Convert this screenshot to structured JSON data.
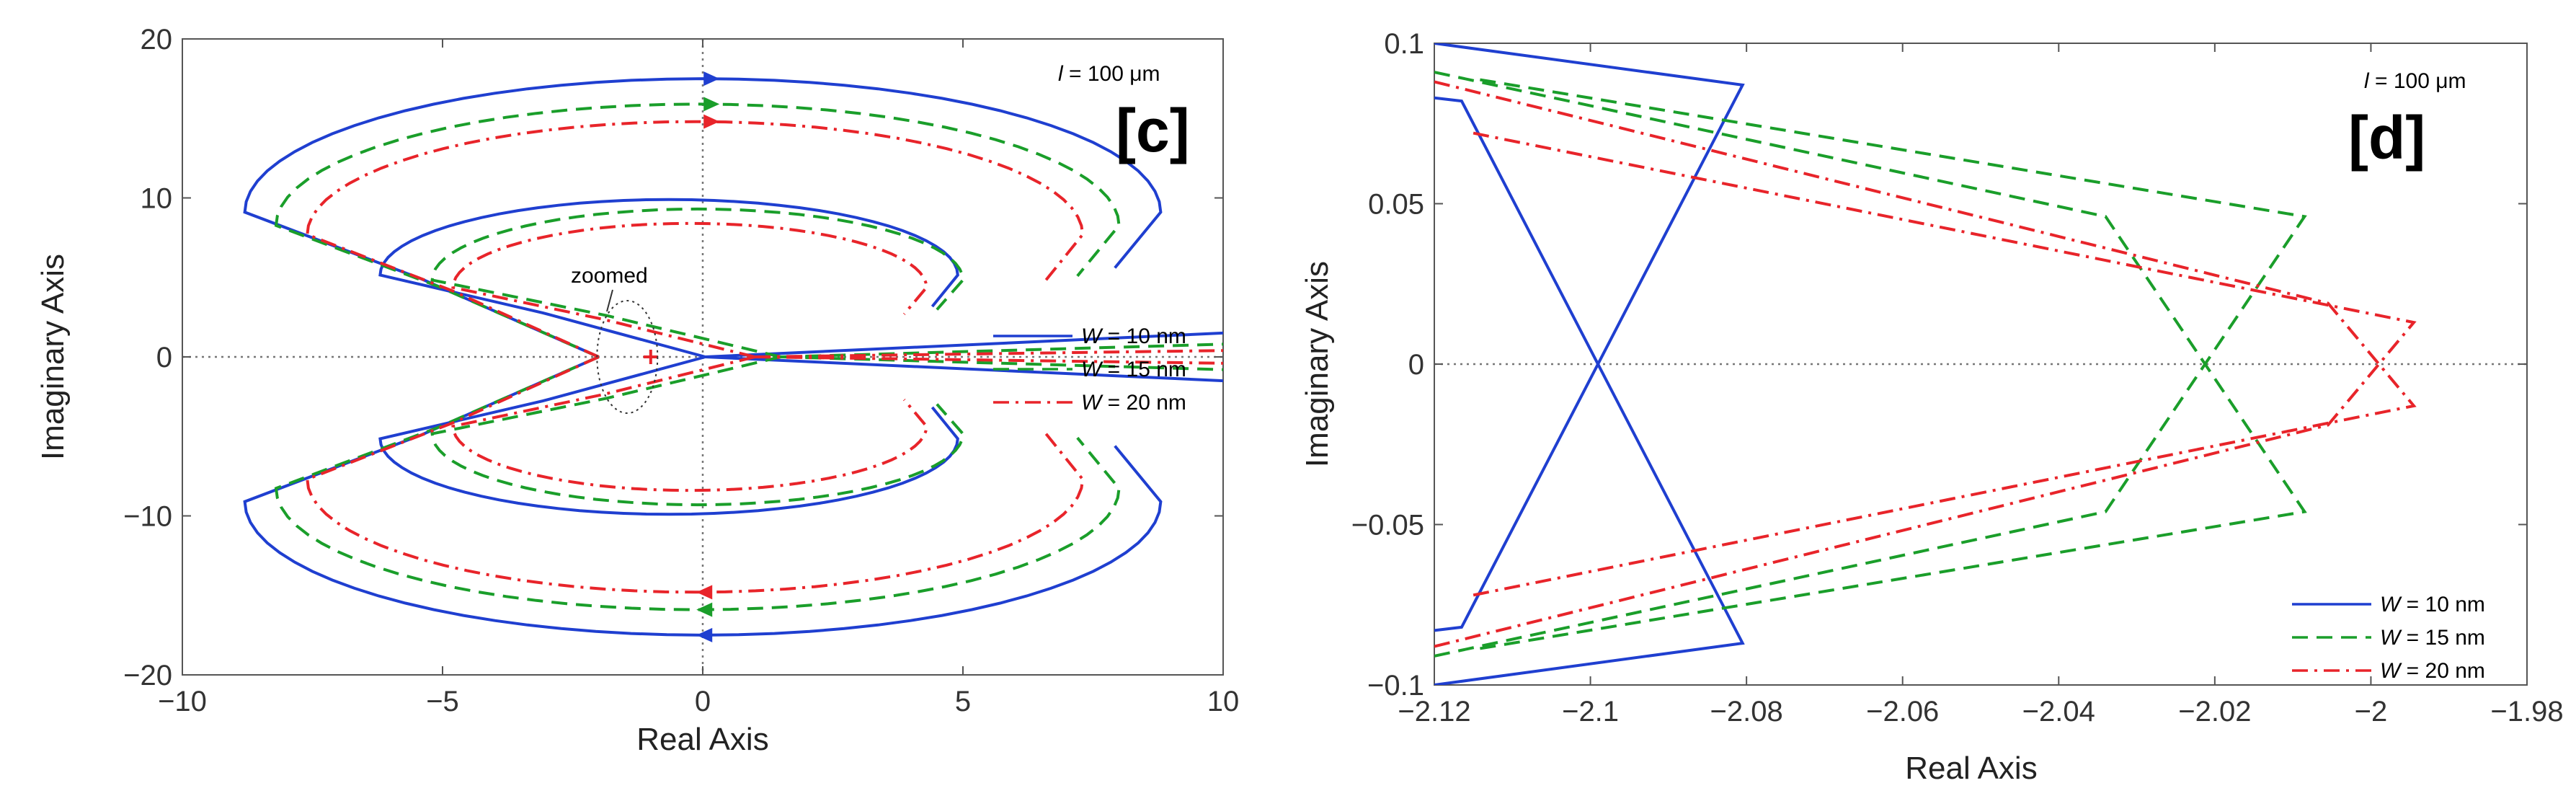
{
  "chart_data": [
    {
      "type": "line",
      "panel_label": "[c]",
      "annotation_l": "l",
      "annotation_rest": " = 100 μm",
      "zoom_label": "zoomed",
      "xlabel": "Real Axis",
      "ylabel": "Imaginary Axis",
      "xlim": [
        -10,
        10
      ],
      "ylim": [
        -20,
        20
      ],
      "xticks": [
        -10,
        -5,
        0,
        5,
        10
      ],
      "yticks": [
        -20,
        -10,
        0,
        10,
        20
      ],
      "xtick_labels": [
        "−10",
        "−5",
        "0",
        "5",
        "10"
      ],
      "ytick_labels": [
        "−20",
        "−10",
        "0",
        "10",
        "20"
      ],
      "legend_position": "center-right",
      "series": [
        {
          "name": "W = 10 nm",
          "name_var": "W",
          "name_rest": " = 10 nm",
          "color": "#1f3fd0",
          "dash": "solid",
          "outer": {
            "xmin": -8.8,
            "xmax": 8.8,
            "ypeak": 17.5,
            "cusp": -2.0
          },
          "inner": {
            "xmin": -6.2,
            "xmax": 4.9,
            "ypeak": 9.9,
            "cusp": 0.05
          },
          "tail_end": [
            10,
            1.5
          ]
        },
        {
          "name": "W = 15 nm",
          "name_var": "W",
          "name_rest": " = 15 nm",
          "color": "#1a9e2a",
          "dash": "dashed",
          "outer": {
            "xmin": -8.2,
            "xmax": 8.0,
            "ypeak": 15.9,
            "cusp": -2.0
          },
          "inner": {
            "xmin": -5.2,
            "xmax": 5.0,
            "ypeak": 9.3,
            "cusp": 1.5
          },
          "tail_end": [
            10,
            0.8
          ]
        },
        {
          "name": "W = 20 nm",
          "name_var": "W",
          "name_rest": " = 20 nm",
          "color": "#e8242a",
          "dash": "dashdot",
          "outer": {
            "xmin": -7.6,
            "xmax": 7.3,
            "ypeak": 14.8,
            "cusp": -2.0
          },
          "inner": {
            "xmin": -4.8,
            "xmax": 4.3,
            "ypeak": 8.4,
            "cusp": 1.0
          },
          "tail_end": [
            10,
            0.4
          ]
        }
      ],
      "marker_x": -1.0
    },
    {
      "type": "line",
      "panel_label": "[d]",
      "annotation_l": "l",
      "annotation_rest": " = 100 μm",
      "xlabel": "Real Axis",
      "ylabel": "Imaginary Axis",
      "xlim": [
        -2.12,
        -1.98
      ],
      "ylim": [
        -0.1,
        0.1
      ],
      "xticks": [
        -2.12,
        -2.1,
        -2.08,
        -2.06,
        -2.04,
        -2.02,
        -2.0,
        -1.98
      ],
      "yticks": [
        -0.1,
        -0.05,
        0,
        0.05,
        0.1
      ],
      "xtick_labels": [
        "−2.12",
        "−2.1",
        "−2.08",
        "−2.06",
        "−2.04",
        "−2.02",
        "−2",
        "−1.98"
      ],
      "ytick_labels": [
        "−0.1",
        "−0.05",
        "0",
        "0.05",
        "0.1"
      ],
      "legend_position": "bottom-right",
      "series": [
        {
          "name": "W = 10 nm",
          "name_var": "W",
          "name_rest": " = 10 nm",
          "color": "#1f3fd0",
          "dash": "solid",
          "points": [
            [
              -2.12,
              0.1
            ],
            [
              -2.0805,
              0.087
            ],
            [
              -2.1165,
              -0.082
            ],
            [
              -2.12,
              -0.083
            ]
          ],
          "points_b": [
            [
              -2.12,
              -0.1
            ],
            [
              -2.0805,
              -0.087
            ],
            [
              -2.1165,
              0.082
            ],
            [
              -2.12,
              0.083
            ]
          ]
        },
        {
          "name": "W = 15 nm",
          "name_var": "W",
          "name_rest": " = 15 nm",
          "color": "#1a9e2a",
          "dash": "dashed",
          "points": [
            [
              -2.12,
              0.091
            ],
            [
              -2.034,
              0.046
            ],
            [
              -2.0085,
              -0.046
            ],
            [
              -2.115,
              -0.089
            ]
          ],
          "points_b": [
            [
              -2.12,
              -0.091
            ],
            [
              -2.034,
              -0.046
            ],
            [
              -2.0085,
              0.046
            ],
            [
              -2.115,
              0.089
            ]
          ]
        },
        {
          "name": "W = 20 nm",
          "name_var": "W",
          "name_rest": " = 20 nm",
          "color": "#e8242a",
          "dash": "dashdot",
          "points": [
            [
              -2.12,
              0.088
            ],
            [
              -2.0055,
              0.019
            ],
            [
              -1.9945,
              -0.013
            ],
            [
              -2.115,
              -0.072
            ]
          ],
          "points_b": [
            [
              -2.12,
              -0.088
            ],
            [
              -2.0055,
              -0.019
            ],
            [
              -1.9945,
              0.013
            ],
            [
              -2.115,
              0.072
            ]
          ]
        }
      ]
    }
  ]
}
